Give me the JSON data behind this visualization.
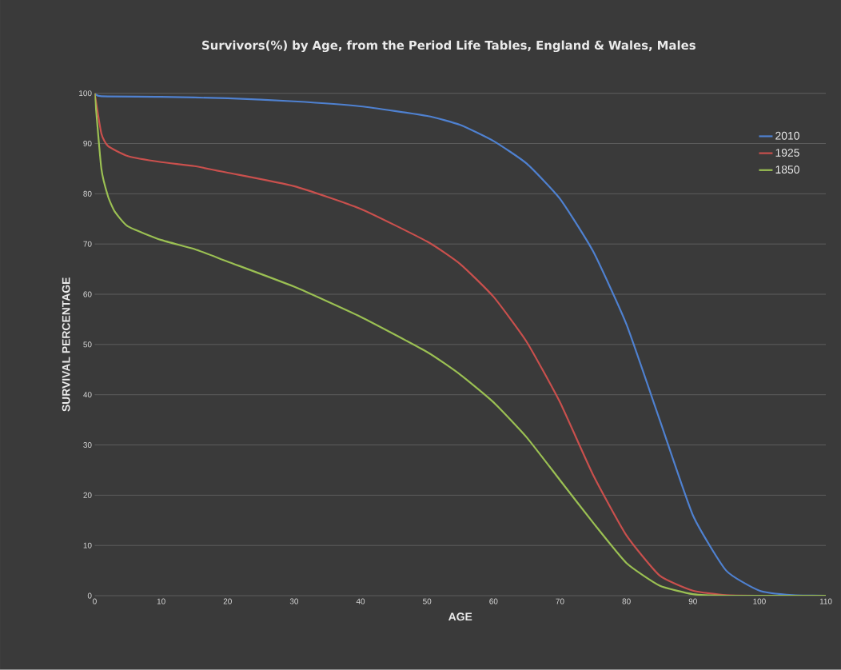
{
  "chart_data": {
    "type": "line",
    "title": "Survivors(%) by Age, from the Period Life Tables, England & Wales, Males",
    "xlabel": "AGE",
    "ylabel": "SURVIVAL PERCENTAGE",
    "xlim": [
      0,
      110
    ],
    "ylim": [
      0,
      100
    ],
    "xticks": [
      0,
      10,
      20,
      30,
      40,
      50,
      60,
      70,
      80,
      90,
      100,
      110
    ],
    "yticks": [
      0,
      10,
      20,
      30,
      40,
      50,
      60,
      70,
      80,
      90,
      100
    ],
    "grid": "y",
    "legend": "top right",
    "marker": "none",
    "line_style": "solid",
    "series": [
      {
        "name": "2010",
        "color": "#4f81d0",
        "x": [
          0,
          1,
          10,
          20,
          30,
          40,
          50,
          55,
          60,
          65,
          70,
          75,
          80,
          85,
          90,
          95,
          100,
          105,
          110
        ],
        "values": [
          100,
          99.4,
          99.3,
          99,
          98.4,
          97.4,
          95.5,
          93.7,
          90.5,
          86,
          79,
          68.5,
          54,
          35,
          16,
          5,
          1,
          0.1,
          0
        ]
      },
      {
        "name": "1925",
        "color": "#c9504d",
        "x": [
          0,
          1,
          2,
          5,
          10,
          15,
          20,
          30,
          40,
          50,
          55,
          60,
          65,
          70,
          75,
          80,
          85,
          90,
          95,
          100,
          110
        ],
        "values": [
          100,
          92,
          89.5,
          87.5,
          86.3,
          85.5,
          84.2,
          81.5,
          77,
          70.5,
          66,
          59.5,
          50.5,
          38.5,
          24,
          12,
          4,
          1,
          0.1,
          0,
          0
        ]
      },
      {
        "name": "1850",
        "color": "#9bc053",
        "x": [
          0,
          1,
          2,
          3,
          5,
          10,
          15,
          20,
          30,
          40,
          50,
          55,
          60,
          65,
          70,
          75,
          80,
          85,
          90,
          95,
          110
        ],
        "values": [
          100,
          85,
          79.5,
          76.5,
          73.5,
          70.8,
          69,
          66.5,
          61.5,
          55.5,
          48.5,
          44,
          38.5,
          31.5,
          23,
          14.5,
          6.5,
          2,
          0.3,
          0,
          0
        ]
      }
    ]
  }
}
